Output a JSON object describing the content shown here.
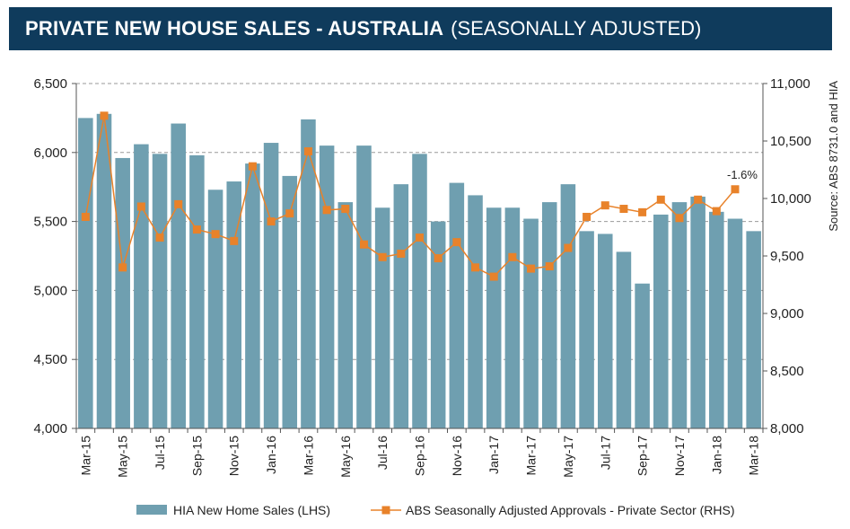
{
  "title": {
    "bold": "PRIVATE NEW HOUSE SALES -  AUSTRALIA",
    "light": "(SEASONALLY ADJUSTED)"
  },
  "source": "Source: ABS 8731.0 and HIA",
  "annotation": "-1.6%",
  "colors": {
    "bar": "#6f9fb0",
    "line": "#e8822a",
    "title_bg": "#0f3b5c",
    "grid": "#999999"
  },
  "chart_data": {
    "type": "bar",
    "title": "PRIVATE NEW HOUSE SALES -  AUSTRALIA (SEASONALLY ADJUSTED)",
    "categories": [
      "Mar-15",
      "Apr-15",
      "May-15",
      "Jun-15",
      "Jul-15",
      "Aug-15",
      "Sep-15",
      "Oct-15",
      "Nov-15",
      "Dec-15",
      "Jan-16",
      "Feb-16",
      "Mar-16",
      "Apr-16",
      "May-16",
      "Jun-16",
      "Jul-16",
      "Aug-16",
      "Sep-16",
      "Oct-16",
      "Nov-16",
      "Dec-16",
      "Jan-17",
      "Feb-17",
      "Mar-17",
      "Apr-17",
      "May-17",
      "Jun-17",
      "Jul-17",
      "Aug-17",
      "Sep-17",
      "Oct-17",
      "Nov-17",
      "Dec-17",
      "Jan-18",
      "Feb-18",
      "Mar-18"
    ],
    "x_tick_labels": [
      "Mar-15",
      "May-15",
      "Jul-15",
      "Sep-15",
      "Nov-15",
      "Jan-16",
      "Mar-16",
      "May-16",
      "Jul-16",
      "Sep-16",
      "Nov-16",
      "Jan-17",
      "Mar-17",
      "May-17",
      "Jul-17",
      "Sep-17",
      "Nov-17",
      "Jan-18",
      "Mar-18"
    ],
    "series": [
      {
        "name": "HIA New Home Sales (LHS)",
        "type": "bar",
        "axis": "left",
        "values": [
          6250,
          6280,
          5960,
          6060,
          5990,
          6210,
          5980,
          5730,
          5790,
          5920,
          6070,
          5830,
          6240,
          6050,
          5640,
          6050,
          5600,
          5770,
          5990,
          5500,
          5780,
          5690,
          5600,
          5600,
          5520,
          5640,
          5770,
          5430,
          5410,
          5280,
          5050,
          5550,
          5640,
          5680,
          5570,
          5520,
          5430
        ]
      },
      {
        "name": "ABS Seasonally Adjusted Approvals - Private Sector (RHS)",
        "type": "line",
        "axis": "right",
        "values": [
          9840,
          10720,
          9400,
          9930,
          9660,
          9950,
          9730,
          9690,
          9630,
          10280,
          9800,
          9870,
          10410,
          9900,
          9910,
          9600,
          9490,
          9520,
          9660,
          9480,
          9620,
          9400,
          9320,
          9490,
          9390,
          9410,
          9570,
          9840,
          9940,
          9910,
          9880,
          9990,
          9830,
          9990,
          9890,
          10080,
          null
        ]
      }
    ],
    "y_left": {
      "min": 4000,
      "max": 6500,
      "ticks": [
        "4,000",
        "4,500",
        "5,000",
        "5,500",
        "6,000",
        "6,500"
      ],
      "tick_values": [
        4000,
        4500,
        5000,
        5500,
        6000,
        6500
      ]
    },
    "y_right": {
      "min": 8000,
      "max": 11000,
      "ticks": [
        "8,000",
        "8,500",
        "9,000",
        "9,500",
        "10,000",
        "10,500",
        "11,000"
      ],
      "tick_values": [
        8000,
        8500,
        9000,
        9500,
        10000,
        10500,
        11000
      ]
    },
    "grid": "horizontal dashed",
    "legend": {
      "placement": "bottom",
      "entries": [
        "HIA New Home Sales (LHS)",
        "ABS Seasonally Adjusted Approvals - Private Sector (RHS)"
      ]
    }
  }
}
